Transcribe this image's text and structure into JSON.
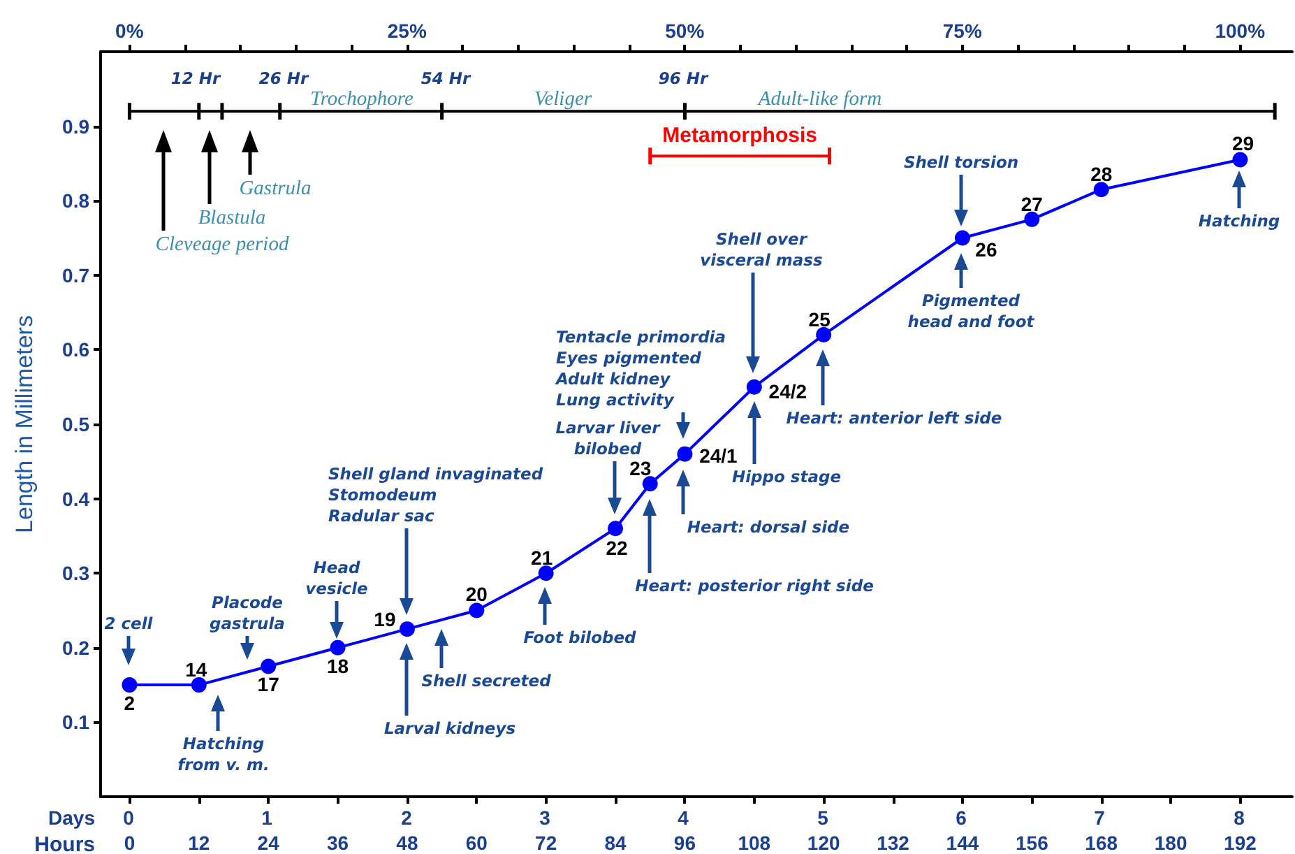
{
  "chart_data": {
    "type": "line",
    "marker": "circle",
    "ylabel": "Length in Millimeters",
    "xlabel": "Hours",
    "ylim": [
      0,
      1.0
    ],
    "yticks": [
      0.1,
      0.2,
      0.3,
      0.4,
      0.5,
      0.6,
      0.7,
      0.8,
      0.9
    ],
    "xlim": [
      -5,
      201
    ],
    "xticks": [
      0,
      12,
      24,
      36,
      48,
      60,
      72,
      84,
      96,
      108,
      120,
      132,
      144,
      156,
      168,
      180,
      192
    ],
    "x2lim": [
      -2.6,
      104.7
    ],
    "x2ticks": [
      {
        "value": 0,
        "label": "0%"
      },
      {
        "value": 5,
        "label": null
      },
      {
        "value": 10,
        "label": null
      },
      {
        "value": 15,
        "label": null
      },
      {
        "value": 20,
        "label": null
      },
      {
        "value": 25,
        "label": "25%"
      },
      {
        "value": 30,
        "label": null
      },
      {
        "value": 35,
        "label": null
      },
      {
        "value": 40,
        "label": null
      },
      {
        "value": 45,
        "label": null
      },
      {
        "value": 50,
        "label": "50%"
      },
      {
        "value": 55,
        "label": null
      },
      {
        "value": 60,
        "label": null
      },
      {
        "value": 65,
        "label": null
      },
      {
        "value": 70,
        "label": null
      },
      {
        "value": 75,
        "label": "75%"
      },
      {
        "value": 80,
        "label": null
      },
      {
        "value": 85,
        "label": null
      },
      {
        "value": 90,
        "label": null
      },
      {
        "value": 95,
        "label": null
      },
      {
        "value": 100,
        "label": "100%"
      }
    ],
    "series": [
      {
        "color": "#0000ff",
        "x": [
          0,
          12,
          24,
          36,
          48,
          60,
          72,
          84,
          90,
          96,
          108,
          120,
          144,
          156,
          168,
          192
        ],
        "values": [
          0.15,
          0.15,
          0.175,
          0.2,
          0.225,
          0.25,
          0.3,
          0.36,
          0.42,
          0.46,
          0.55,
          0.62,
          0.75,
          0.775,
          0.815,
          0.855
        ]
      },
      {
        "color": "#000000",
        "marker": "none",
        "x": [
          0,
          12,
          16,
          26,
          54,
          96,
          198
        ],
        "values": [
          0.92,
          0.92,
          0.92,
          0.92,
          0.92,
          0.92,
          0.92
        ]
      },
      {
        "name": "Metamorphosis",
        "color": "#ff0000",
        "marker": "none",
        "x": [
          90,
          121
        ],
        "values": [
          0.86,
          0.86
        ]
      }
    ],
    "annotations": [
      {
        "text": "2",
        "x": 0,
        "y": 0.15
      },
      {
        "text": "14",
        "x": 12,
        "y": 0.15
      },
      {
        "text": "17",
        "x": 24,
        "y": 0.175
      },
      {
        "text": "18",
        "x": 36,
        "y": 0.2
      },
      {
        "text": "19",
        "x": 48,
        "y": 0.225
      },
      {
        "text": "20",
        "x": 60,
        "y": 0.25
      },
      {
        "text": "21",
        "x": 72,
        "y": 0.3
      },
      {
        "text": "22",
        "x": 84,
        "y": 0.36
      },
      {
        "text": "23",
        "x": 90,
        "y": 0.42
      },
      {
        "text": "24/1",
        "x": 96,
        "y": 0.46
      },
      {
        "text": "24/2",
        "x": 108,
        "y": 0.55
      },
      {
        "text": "25",
        "x": 120,
        "y": 0.62
      },
      {
        "text": "26",
        "x": 144,
        "y": 0.75
      },
      {
        "text": "27",
        "x": 156,
        "y": 0.775
      },
      {
        "text": "28",
        "x": 168,
        "y": 0.815
      },
      {
        "text": "29",
        "x": 192,
        "y": 0.855
      },
      "2 cell",
      "Hatching\nfrom v. m.",
      "Placode\ngastrula",
      "Head\nvesicle",
      "Shell gland invaginated\nStomodeum\nRadular sac",
      "Larval kidneys",
      "Shell secreted",
      "Foot bilobed",
      "Larvar liver\nbilobed",
      "Heart: posterior right side",
      "Tentacle primordia\nEyes pigmented\nAdult kidney\nLung activity",
      "Heart: dorsal side",
      "Shell over\nvisceral mass",
      "Hippo stage",
      "Heart: anterior left side",
      "Shell torsion",
      "Pigmented\nhead and foot",
      "Hatching",
      "Cleveage period",
      "Blastula",
      "Gastrula",
      "12 Hr",
      "26 Hr",
      "54 Hr",
      "96 Hr",
      "Trochophore",
      "Veliger",
      "Adult-like form",
      "Days",
      "0",
      "1",
      "2",
      "3",
      "4",
      "5",
      "6",
      "7",
      "8"
    ]
  }
}
